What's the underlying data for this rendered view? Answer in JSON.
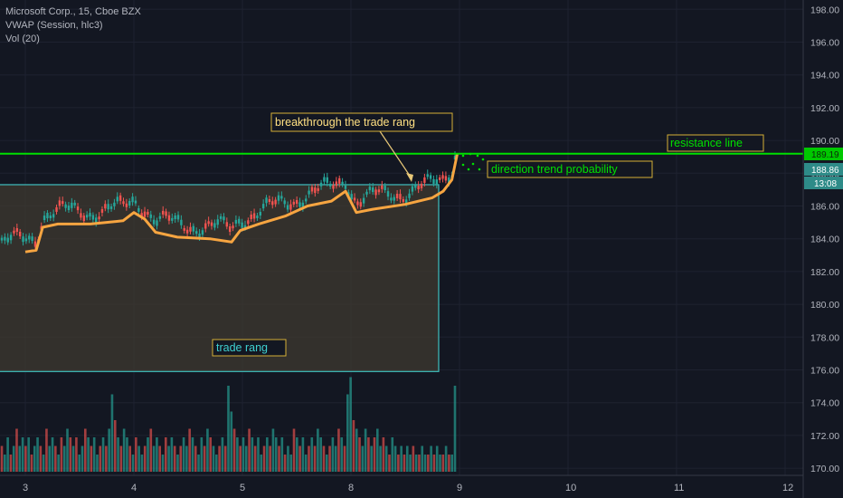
{
  "legend": {
    "symbol": "Microsoft Corp., 15, Cboe BZX",
    "vwap": "VWAP (Session, hlc3)",
    "vol": "Vol (20)"
  },
  "colors": {
    "background": "#131722",
    "grid": "#1e2230",
    "up": "#26a69a",
    "down": "#ef5350",
    "vwap": "#f7a541",
    "resistance": "#00e000",
    "box_border": "#3fbfbf",
    "box_fill": "#3f3a30",
    "callout_text": "#ffe082",
    "label_bg_teal": "#2e8b88"
  },
  "chart_data": {
    "type": "candlestick",
    "x_ticks": [
      "3",
      "4",
      "5",
      "8",
      "9",
      "10",
      "11",
      "12"
    ],
    "y_ticks": [
      "170.00",
      "172.00",
      "174.00",
      "176.00",
      "178.00",
      "180.00",
      "182.00",
      "184.00",
      "186.00",
      "188.00",
      "190.00",
      "192.00",
      "194.00",
      "196.00",
      "198.00"
    ],
    "ylim": [
      169.3,
      199.0
    ],
    "vwap": [
      {
        "t": 0.0,
        "v": 183.2
      },
      {
        "t": 0.1,
        "v": 183.3
      },
      {
        "t": 0.16,
        "v": 184.7
      },
      {
        "t": 0.3,
        "v": 184.9
      },
      {
        "t": 0.6,
        "v": 184.9
      },
      {
        "t": 0.9,
        "v": 185.1
      },
      {
        "t": 1.0,
        "v": 185.6
      },
      {
        "t": 1.1,
        "v": 185.2
      },
      {
        "t": 1.2,
        "v": 184.4
      },
      {
        "t": 1.4,
        "v": 184.1
      },
      {
        "t": 1.7,
        "v": 184.0
      },
      {
        "t": 1.9,
        "v": 183.8
      },
      {
        "t": 1.98,
        "v": 184.5
      },
      {
        "t": 2.15,
        "v": 184.9
      },
      {
        "t": 2.4,
        "v": 185.4
      },
      {
        "t": 2.6,
        "v": 186.0
      },
      {
        "t": 2.82,
        "v": 186.3
      },
      {
        "t": 2.95,
        "v": 186.9
      },
      {
        "t": 3.05,
        "v": 185.6
      },
      {
        "t": 3.2,
        "v": 185.8
      },
      {
        "t": 3.5,
        "v": 186.1
      },
      {
        "t": 3.75,
        "v": 186.5
      },
      {
        "t": 3.85,
        "v": 186.9
      },
      {
        "t": 3.93,
        "v": 187.6
      },
      {
        "t": 3.98,
        "v": 189.2
      }
    ],
    "volume_levels": [
      3,
      2,
      4,
      2,
      3,
      5,
      3,
      4,
      3,
      4,
      2,
      3,
      4,
      3,
      2,
      5,
      3,
      4,
      3,
      2,
      4,
      3,
      5,
      4,
      3,
      4,
      2,
      3,
      5,
      4,
      3,
      4,
      2,
      3,
      4,
      3,
      5,
      9,
      6,
      4,
      3,
      5,
      4,
      3,
      2,
      4,
      3,
      2,
      3,
      4,
      5,
      3,
      4,
      3,
      2,
      4,
      3,
      4,
      3,
      2,
      3,
      4,
      3,
      5,
      4,
      3,
      2,
      4,
      3,
      5,
      4,
      3,
      2,
      3,
      4,
      3,
      10,
      7,
      5,
      4,
      3,
      4,
      3,
      5,
      4,
      3,
      4,
      2,
      3,
      4,
      3,
      5,
      4,
      3,
      4,
      2,
      3,
      2,
      5,
      4,
      3,
      4,
      2,
      3,
      4,
      3,
      5,
      4,
      3,
      2,
      3,
      4,
      3,
      5,
      4,
      3,
      9,
      11,
      6,
      5,
      4,
      3,
      5,
      4,
      3,
      4,
      5,
      3,
      4,
      3,
      2,
      4,
      3,
      2,
      3,
      2,
      3,
      2,
      3,
      2,
      2,
      3,
      2,
      2,
      3,
      2,
      3,
      2,
      2,
      3,
      2,
      2,
      10
    ],
    "trade_range": {
      "top": 187.3,
      "bottom": 175.9
    },
    "resistance_level": 189.19,
    "price_labels": [
      "189.19",
      "188.86",
      "13:08"
    ],
    "annotations": {
      "breakthrough": "breakthrough the trade rang",
      "resistance": "resistance line",
      "direction": "direction trend probability",
      "range": "trade rang"
    }
  }
}
